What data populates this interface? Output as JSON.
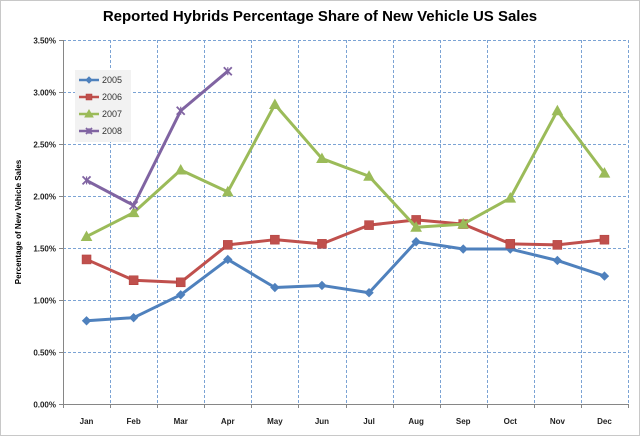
{
  "chart_data": {
    "type": "line",
    "title": "Reported Hybrids Percentage Share of New Vehicle US Sales",
    "xlabel": "",
    "ylabel": "Percentage of New Vehicle Sales",
    "categories": [
      "Jan",
      "Feb",
      "Mar",
      "Apr",
      "May",
      "Jun",
      "Jul",
      "Aug",
      "Sep",
      "Oct",
      "Nov",
      "Dec"
    ],
    "ylim": [
      0,
      3.5
    ],
    "y_ticks": [
      0,
      0.5,
      1.0,
      1.5,
      2.0,
      2.5,
      3.0,
      3.5
    ],
    "y_tick_labels": [
      "0.00%",
      "0.50%",
      "1.00%",
      "1.50%",
      "2.00%",
      "2.50%",
      "3.00%",
      "3.50%"
    ],
    "y_unit": "percent",
    "grid": true,
    "legend_position": "top-left",
    "series": [
      {
        "name": "2005",
        "color": "#4f81bd",
        "marker": "diamond",
        "values": [
          0.8,
          0.83,
          1.05,
          1.39,
          1.12,
          1.14,
          1.07,
          1.56,
          1.49,
          1.49,
          1.38,
          1.23
        ]
      },
      {
        "name": "2006",
        "color": "#c0504d",
        "marker": "square",
        "values": [
          1.39,
          1.19,
          1.17,
          1.53,
          1.58,
          1.54,
          1.72,
          1.77,
          1.73,
          1.54,
          1.53,
          1.58
        ]
      },
      {
        "name": "2007",
        "color": "#9bbb59",
        "marker": "triangle",
        "values": [
          1.61,
          1.84,
          2.25,
          2.04,
          2.88,
          2.36,
          2.19,
          1.7,
          1.73,
          1.98,
          2.82,
          2.22
        ]
      },
      {
        "name": "2008",
        "color": "#8064a2",
        "marker": "star",
        "values": [
          2.15,
          1.91,
          2.82,
          3.2,
          null,
          null,
          null,
          null,
          null,
          null,
          null,
          null
        ]
      }
    ]
  },
  "colors": {
    "grid": "#7ba3d4",
    "axis": "#868686",
    "legend_bg": "#f2f2f2"
  }
}
